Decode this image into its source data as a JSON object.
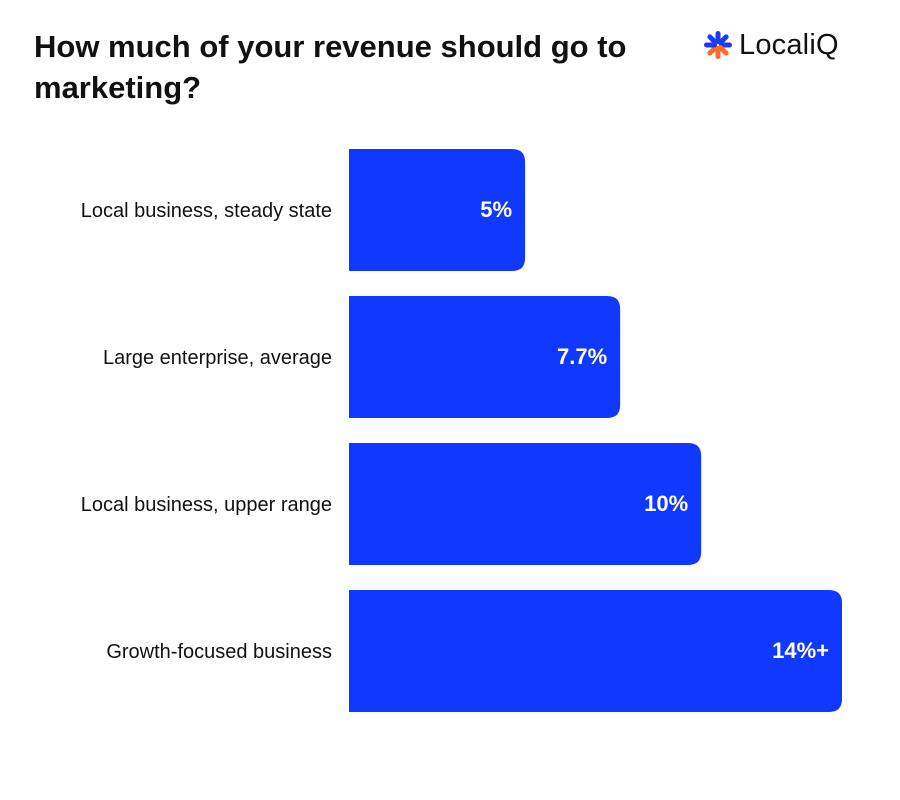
{
  "logo": {
    "text": "LocaliQ",
    "icon": "asterisk-logo-icon",
    "colors": {
      "top": "#1a3cf0",
      "bottom": "#ff6a2a"
    }
  },
  "chart_data": {
    "type": "bar",
    "orientation": "horizontal",
    "title": "How much of your revenue should go to marketing?",
    "categories": [
      "Local business, steady state",
      "Large enterprise, average",
      "Local business, upper range",
      "Growth-focused business"
    ],
    "values": [
      5,
      7.7,
      10,
      14
    ],
    "value_labels": [
      "5%",
      "7.7%",
      "10%",
      "14%+"
    ],
    "unit": "%",
    "xlim": [
      0,
      14
    ],
    "grid": false,
    "legend": "none",
    "bar_color": "#1038ff"
  }
}
